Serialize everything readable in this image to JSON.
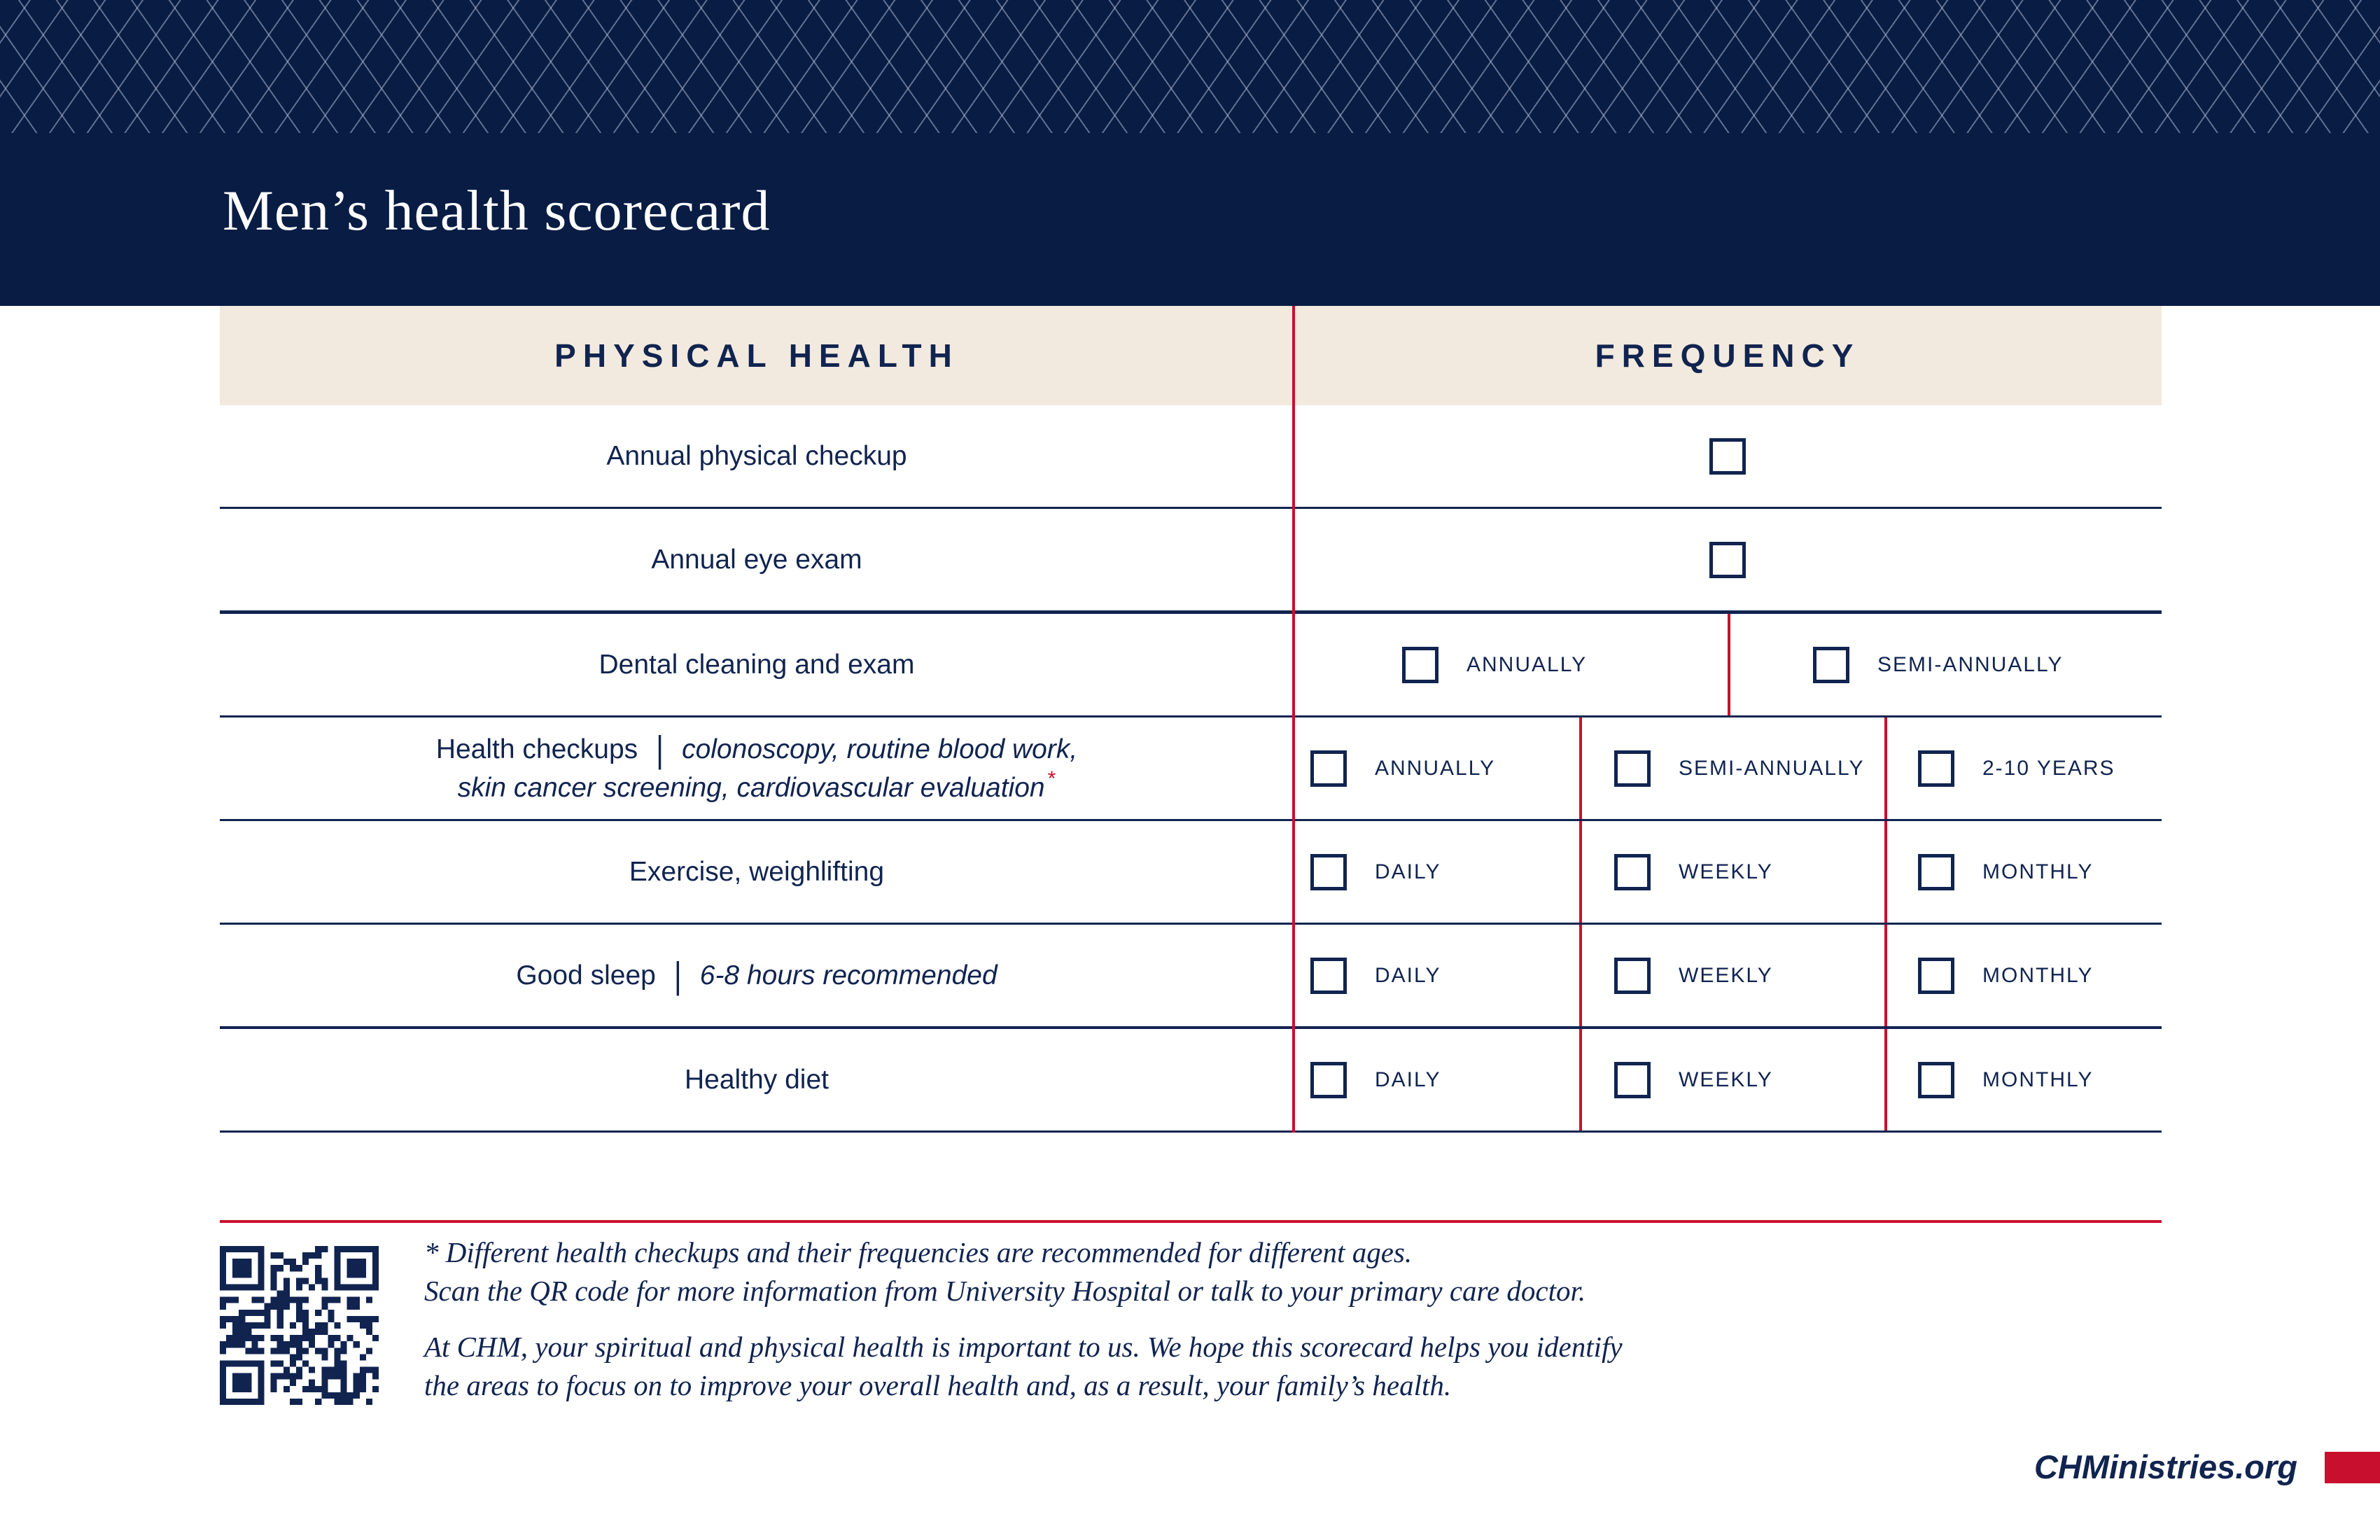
{
  "page": {
    "title": "Men’s health scorecard"
  },
  "colors": {
    "navy": "#081C44",
    "text_navy": "#112450",
    "red": "#C8102E",
    "beige": "#F2EADE"
  },
  "table": {
    "headers": {
      "col1": "PHYSICAL HEALTH",
      "col2": "FREQUENCY"
    },
    "rows": [
      {
        "label": "Annual physical checkup",
        "options": [
          ""
        ]
      },
      {
        "label": "Annual eye exam",
        "options": [
          ""
        ]
      },
      {
        "label": "Dental cleaning and exam",
        "options": [
          "ANNUALLY",
          "SEMI-ANNUALLY"
        ]
      },
      {
        "label": "Health checkups",
        "separator": "|",
        "detail": "colonoscopy, routine blood work,",
        "detail2": "skin cancer screening, cardiovascular evaluation",
        "marker": "*",
        "options": [
          "ANNUALLY",
          "SEMI-ANNUALLY",
          "2-10 YEARS"
        ]
      },
      {
        "label": "Exercise, weighlifting",
        "options": [
          "DAILY",
          "WEEKLY",
          "MONTHLY"
        ]
      },
      {
        "label": "Good sleep",
        "separator": "|",
        "detail": "6-8 hours recommended",
        "options": [
          "DAILY",
          "WEEKLY",
          "MONTHLY"
        ]
      },
      {
        "label": "Healthy diet",
        "options": [
          "DAILY",
          "WEEKLY",
          "MONTHLY"
        ]
      }
    ]
  },
  "footnote": {
    "asterisk_note": [
      "* Different health checkups and their frequencies are recommended for different ages.",
      "Scan the QR code for more information from University Hospital or talk to your primary care doctor."
    ],
    "closing_note": [
      "At CHM, your spiritual and physical health is important to us. We hope this scorecard helps you identify",
      "the areas to focus on to improve your overall health and, as a result, your family’s health."
    ]
  },
  "footer": {
    "website": "CHMinistries.org"
  }
}
